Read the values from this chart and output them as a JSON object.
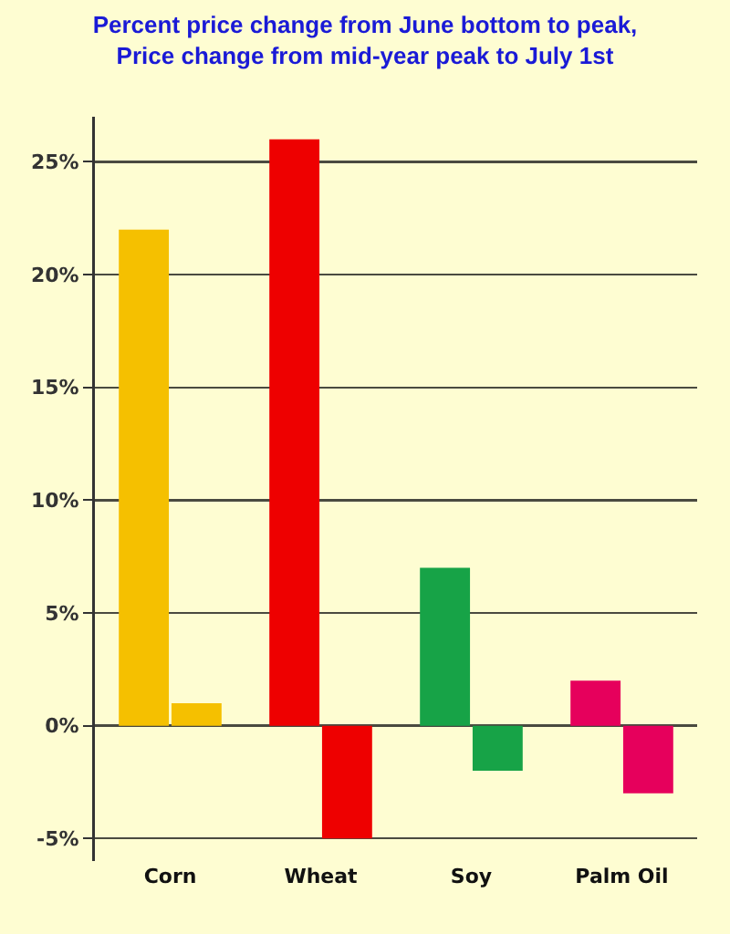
{
  "chart_data": {
    "type": "bar",
    "title": "Percent price change from June bottom to peak,",
    "subtitle": "Price change from mid-year peak to July 1st",
    "categories": [
      "Corn",
      "Wheat",
      "Soy",
      "Palm Oil"
    ],
    "series": [
      {
        "colors": [
          "#f5c000",
          "#ee0000",
          "#17a347",
          "#e6005c"
        ],
        "values": [
          22,
          26,
          7,
          2
        ]
      },
      {
        "colors": [
          "#f5c000",
          "#ee0000",
          "#17a347",
          "#e6005c"
        ],
        "values": [
          1,
          -5,
          -2,
          -3
        ]
      }
    ],
    "ylim": [
      -6,
      27
    ],
    "yticks": [
      {
        "value": -5,
        "label": "-5%"
      },
      {
        "value": 0,
        "label": "0%"
      },
      {
        "value": 5,
        "label": "5%"
      },
      {
        "value": 10,
        "label": "10%"
      },
      {
        "value": 15,
        "label": "15%"
      },
      {
        "value": 20,
        "label": "20%"
      },
      {
        "value": 25,
        "label": "25%"
      }
    ],
    "grid": "y"
  }
}
